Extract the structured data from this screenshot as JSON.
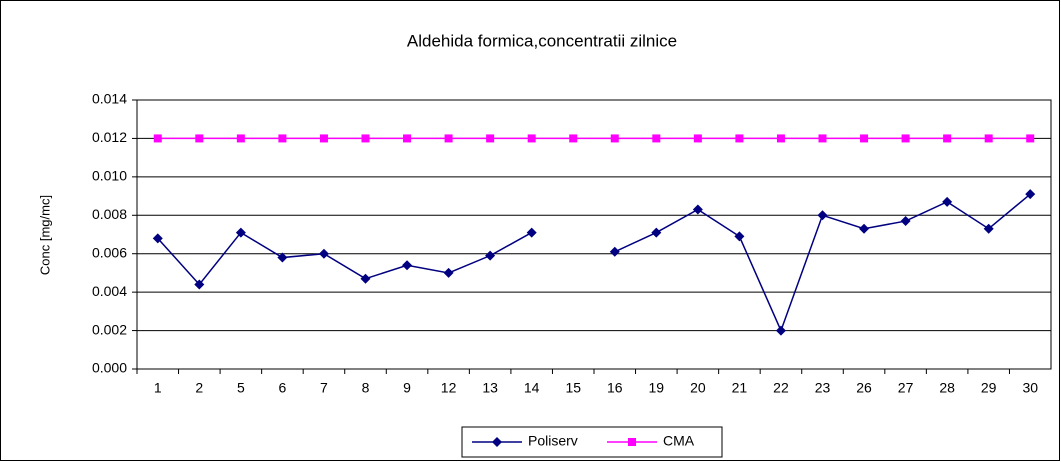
{
  "chart_data": {
    "type": "line",
    "title": "Aldehida formica,concentratii zilnice",
    "y_label": "Conc [mg/mc]",
    "categories": [
      "1",
      "2",
      "5",
      "6",
      "7",
      "8",
      "9",
      "12",
      "13",
      "14",
      "15",
      "16",
      "19",
      "20",
      "21",
      "22",
      "23",
      "26",
      "27",
      "28",
      "29",
      "30"
    ],
    "series": [
      {
        "name": "Poliserv",
        "color": "#000080",
        "marker": "diamond",
        "values": [
          0.0068,
          0.0044,
          0.0071,
          0.0058,
          0.006,
          0.0047,
          0.0054,
          0.005,
          0.0059,
          0.0071,
          null,
          0.0061,
          0.0071,
          0.0083,
          0.0069,
          0.002,
          0.008,
          0.0073,
          0.0077,
          0.0087,
          0.0073,
          0.0091
        ]
      },
      {
        "name": "CMA",
        "color": "#ff00ff",
        "marker": "square",
        "values": [
          0.012,
          0.012,
          0.012,
          0.012,
          0.012,
          0.012,
          0.012,
          0.012,
          0.012,
          0.012,
          0.012,
          0.012,
          0.012,
          0.012,
          0.012,
          0.012,
          0.012,
          0.012,
          0.012,
          0.012,
          0.012,
          0.012
        ]
      }
    ],
    "ylim": [
      0,
      0.014
    ],
    "yticks": [
      {
        "value": 0,
        "label": "0.000"
      },
      0.002,
      0.004,
      0.006,
      0.008,
      {
        "value": 0.01,
        "label": "0.010"
      },
      0.012,
      0.014
    ],
    "grid": true,
    "legend": "bottom"
  }
}
